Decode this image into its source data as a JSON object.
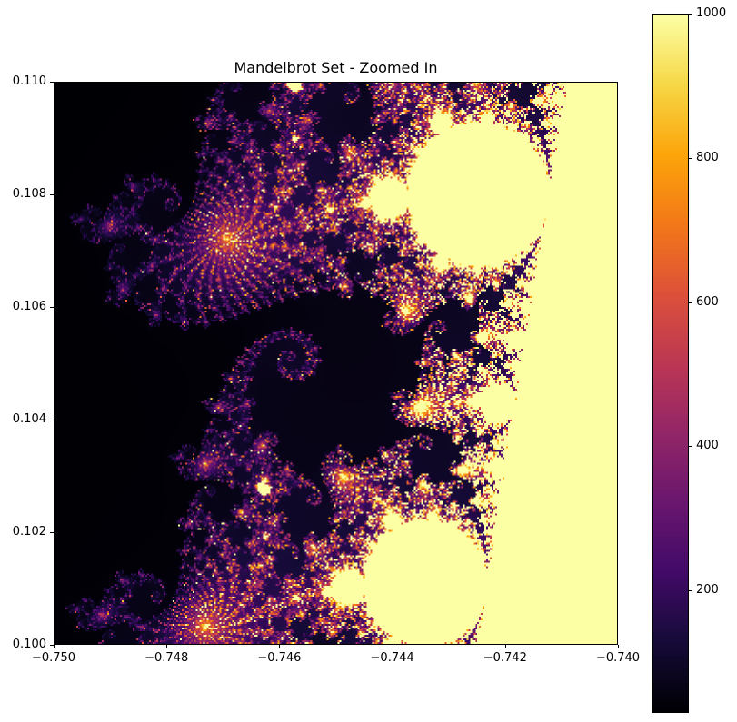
{
  "chart_data": {
    "type": "heatmap",
    "title": "Mandelbrot Set - Zoomed In",
    "xlabel": "",
    "ylabel": "",
    "xlim": [
      -0.75,
      -0.74
    ],
    "ylim": [
      0.1,
      0.11
    ],
    "x_ticks": [
      "−0.750",
      "−0.748",
      "−0.746",
      "−0.744",
      "−0.742",
      "−0.740"
    ],
    "x_tick_values": [
      -0.75,
      -0.748,
      -0.746,
      -0.744,
      -0.742,
      -0.74
    ],
    "y_ticks": [
      "0.110",
      "0.108",
      "0.106",
      "0.104",
      "0.102",
      "0.100"
    ],
    "y_tick_values": [
      0.11,
      0.108,
      0.106,
      0.104,
      0.102,
      0.1
    ],
    "colormap": "inferno",
    "max_iterations": 1000,
    "colorbar": {
      "vmin": 30,
      "vmax": 1000,
      "ticks": [
        "200",
        "400",
        "600",
        "800",
        "1000"
      ],
      "tick_values": [
        200,
        400,
        600,
        800,
        1000
      ]
    },
    "grid": false,
    "legend": null,
    "description": "Escape-iteration count heatmap of the Mandelbrot set near the seahorse valley; points inside the set reach 1000 iterations (pale yellow), exterior near black."
  }
}
